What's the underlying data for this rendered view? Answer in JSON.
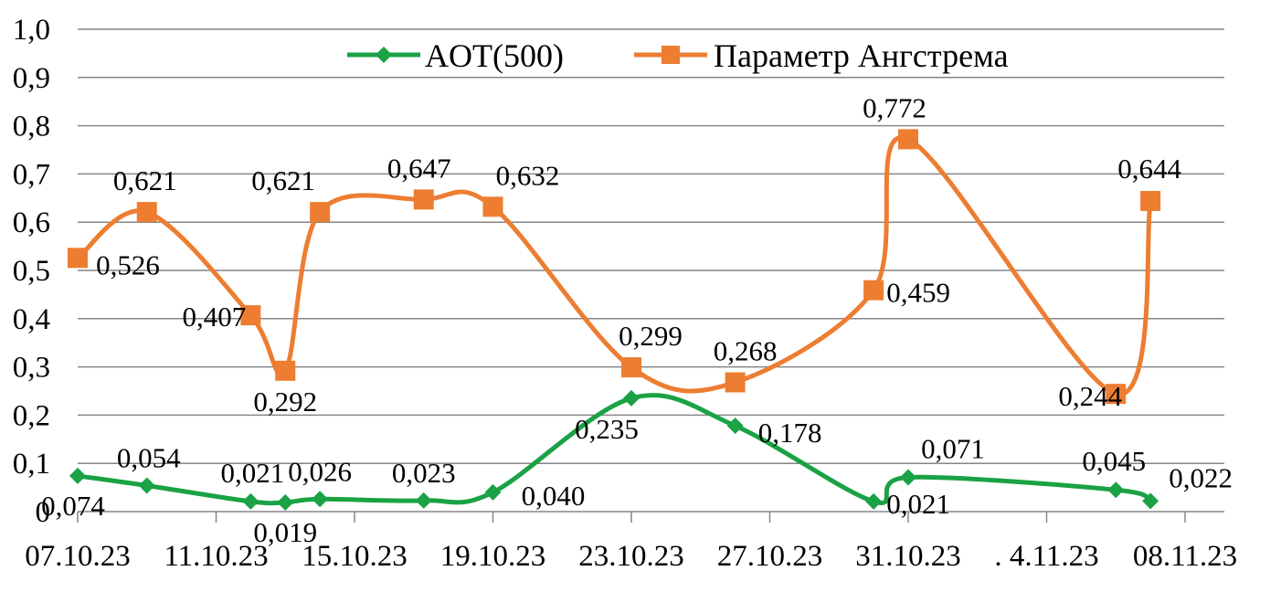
{
  "chart_data": {
    "type": "line",
    "title": "",
    "xlabel": "",
    "ylabel": "",
    "ylim": [
      0,
      1.0
    ],
    "yticks": [
      0,
      0.1,
      0.2,
      0.3,
      0.4,
      0.5,
      0.6,
      0.7,
      0.8,
      0.9,
      1.0
    ],
    "ytick_labels": [
      "0",
      "0,1",
      "0,2",
      "0,3",
      "0,4",
      "0,5",
      "0,6",
      "0,7",
      "0,8",
      "0,9",
      "1,0"
    ],
    "xlim": [
      "2023-10-07",
      "2023-11-08"
    ],
    "xticks": [
      "2023-10-07",
      "2023-10-11",
      "2023-10-15",
      "2023-10-19",
      "2023-10-23",
      "2023-10-27",
      "2023-10-31",
      "2023-11-04",
      "2023-11-08"
    ],
    "xtick_labels": [
      "07.10.23",
      "11.10.23",
      "15.10.23",
      "19.10.23",
      "23.10.23",
      "27.10.23",
      "31.10.23",
      ". 4.11.23",
      "08.11.23"
    ],
    "grid": "horizontal",
    "legend": "top",
    "smooth": true,
    "series": [
      {
        "name": "AOT(500)",
        "color": "#1aa244",
        "marker": "diamond",
        "x": [
          "2023-10-07",
          "2023-10-09",
          "2023-10-12",
          "2023-10-13",
          "2023-10-14",
          "2023-10-17",
          "2023-10-19",
          "2023-10-23",
          "2023-10-26",
          "2023-10-30",
          "2023-10-31",
          "2023-11-06",
          "2023-11-07"
        ],
        "values": [
          0.074,
          0.054,
          0.021,
          0.019,
          0.026,
          0.023,
          0.04,
          0.235,
          0.178,
          0.021,
          0.071,
          0.045,
          0.022
        ],
        "labels": [
          "0,074",
          "0,054",
          "0,021",
          "0,019",
          "0,026",
          "0,023",
          "0,040",
          "0,235",
          "0,178",
          "0,021",
          "0,071",
          "0,045",
          "0,022"
        ]
      },
      {
        "name": "Параметр Ангстрема",
        "color": "#ed7d31",
        "marker": "square",
        "x": [
          "2023-10-07",
          "2023-10-09",
          "2023-10-12",
          "2023-10-13",
          "2023-10-14",
          "2023-10-17",
          "2023-10-19",
          "2023-10-23",
          "2023-10-26",
          "2023-10-30",
          "2023-10-31",
          "2023-11-06",
          "2023-11-07"
        ],
        "values": [
          0.526,
          0.621,
          0.407,
          0.292,
          0.621,
          0.647,
          0.632,
          0.299,
          0.268,
          0.459,
          0.772,
          0.244,
          0.644
        ],
        "labels": [
          "0,526",
          "0,621",
          "0,407",
          "0,292",
          "0,621",
          "0,647",
          "0,632",
          "0,299",
          "0,268",
          "0,459",
          "0,772",
          "0,244",
          "0,644"
        ]
      }
    ]
  }
}
